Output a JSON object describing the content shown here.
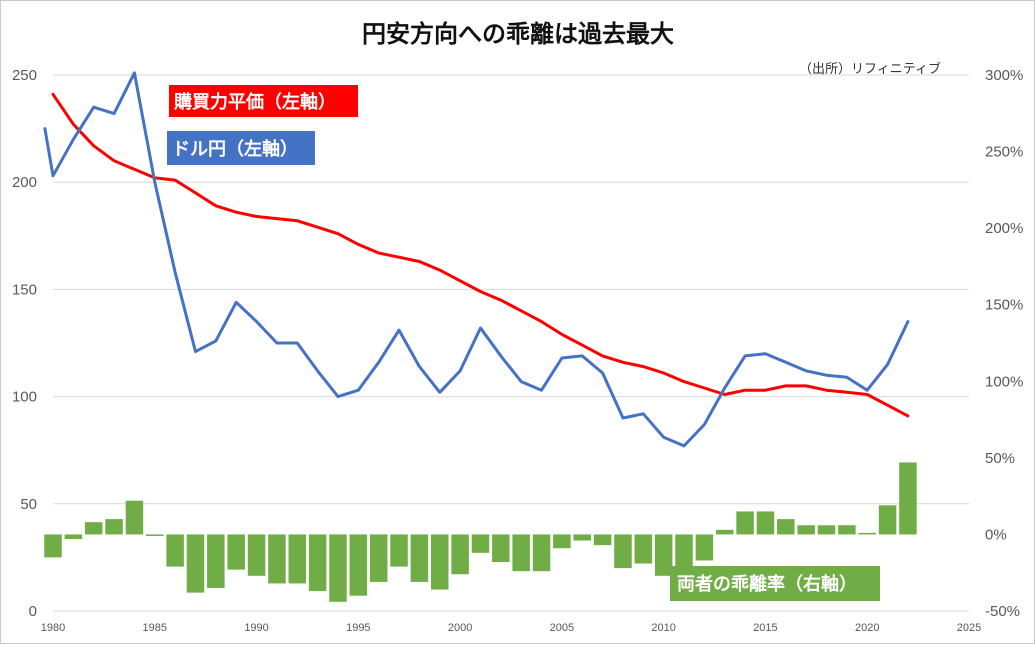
{
  "chart_data": {
    "type": "line+bar",
    "title": "円安方向への乖離は過去最大",
    "source": "（出所）リフィニティブ",
    "x_range": [
      1980,
      2025
    ],
    "x_ticks": [
      1980,
      1985,
      1990,
      1995,
      2000,
      2005,
      2010,
      2015,
      2020,
      2025
    ],
    "left_axis": {
      "range": [
        0,
        250
      ],
      "ticks": [
        0,
        50,
        100,
        150,
        200,
        250
      ]
    },
    "right_axis": {
      "range": [
        -0.5,
        3.0
      ],
      "ticks": [
        "-50%",
        "0%",
        "50%",
        "100%",
        "150%",
        "200%",
        "250%",
        "300%"
      ]
    },
    "grid": true,
    "series": [
      {
        "name": "購買力平価（左軸）",
        "kind": "line",
        "axis": "left",
        "color": "#ff0000",
        "x": [
          1980,
          1981,
          1982,
          1983,
          1984,
          1985,
          1986,
          1987,
          1988,
          1989,
          1990,
          1991,
          1992,
          1993,
          1994,
          1995,
          1996,
          1997,
          1998,
          1999,
          2000,
          2001,
          2002,
          2003,
          2004,
          2005,
          2006,
          2007,
          2008,
          2009,
          2010,
          2011,
          2012,
          2013,
          2014,
          2015,
          2016,
          2017,
          2018,
          2019,
          2020,
          2021,
          2022
        ],
        "values": [
          241,
          227,
          217,
          210,
          206,
          202,
          201,
          195,
          189,
          186,
          184,
          183,
          182,
          179,
          176,
          171,
          167,
          165,
          163,
          159,
          154,
          149,
          145,
          140,
          135,
          129,
          124,
          119,
          116,
          114,
          111,
          107,
          104,
          101,
          103,
          103,
          105,
          105,
          103,
          102,
          101,
          96,
          91
        ]
      },
      {
        "name": "ドル円（左軸）",
        "kind": "line",
        "axis": "left",
        "color": "#4472c4",
        "x": [
          1979.6,
          1980,
          1981,
          1982,
          1983,
          1984,
          1985,
          1986,
          1987,
          1988,
          1989,
          1990,
          1991,
          1992,
          1993,
          1994,
          1995,
          1996,
          1997,
          1998,
          1999,
          2000,
          2001,
          2002,
          2003,
          2004,
          2005,
          2006,
          2007,
          2008,
          2009,
          2010,
          2011,
          2012,
          2013,
          2014,
          2015,
          2016,
          2017,
          2018,
          2019,
          2020,
          2021,
          2022
        ],
        "values": [
          225,
          203,
          220,
          235,
          232,
          251,
          200,
          158,
          121,
          126,
          144,
          135,
          125,
          125,
          112,
          100,
          103,
          116,
          131,
          114,
          102,
          112,
          132,
          119,
          107,
          103,
          118,
          119,
          111,
          90,
          92,
          81,
          77,
          87,
          104,
          119,
          120,
          116,
          112,
          110,
          109,
          103,
          115,
          135
        ]
      },
      {
        "name": "両者の乖離率（右軸）",
        "kind": "bar",
        "axis": "right",
        "color": "#70ad47",
        "x": [
          1980,
          1981,
          1982,
          1983,
          1984,
          1985,
          1986,
          1987,
          1988,
          1989,
          1990,
          1991,
          1992,
          1993,
          1994,
          1995,
          1996,
          1997,
          1998,
          1999,
          2000,
          2001,
          2002,
          2003,
          2004,
          2005,
          2006,
          2007,
          2008,
          2009,
          2010,
          2011,
          2012,
          2013,
          2014,
          2015,
          2016,
          2017,
          2018,
          2019,
          2020,
          2021,
          2022
        ],
        "values": [
          -0.15,
          -0.03,
          0.08,
          0.1,
          0.22,
          -0.01,
          -0.21,
          -0.38,
          -0.35,
          -0.23,
          -0.27,
          -0.32,
          -0.32,
          -0.37,
          -0.44,
          -0.4,
          -0.31,
          -0.21,
          -0.31,
          -0.36,
          -0.26,
          -0.12,
          -0.18,
          -0.24,
          -0.24,
          -0.09,
          -0.04,
          -0.07,
          -0.22,
          -0.19,
          -0.27,
          -0.28,
          -0.17,
          0.03,
          0.15,
          0.15,
          0.1,
          0.06,
          0.06,
          0.06,
          0.01,
          0.19,
          0.47
        ]
      }
    ]
  }
}
